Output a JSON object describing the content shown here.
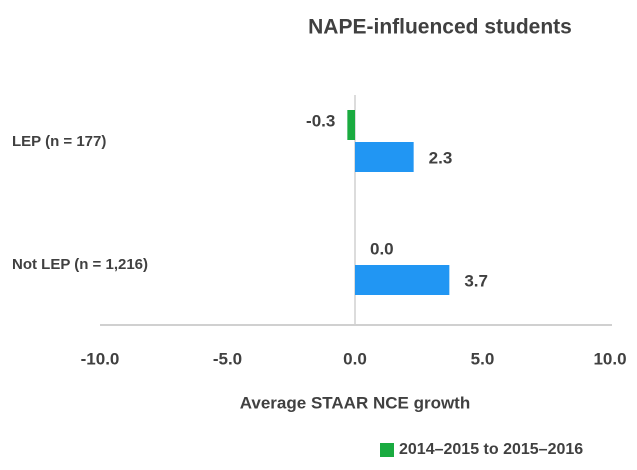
{
  "chart_data": {
    "type": "hbar",
    "title": "NAPE-influenced students",
    "xlabel": "Average STAAR NCE growth",
    "categories": [
      "LEP (n = 177)",
      "Not LEP (n = 1,216)"
    ],
    "series": [
      {
        "name": "2014–2015 to 2015–2016",
        "color": "#1aab40",
        "values": [
          -0.3,
          0.0
        ],
        "value_labels": [
          "-0.3",
          "0.0"
        ]
      },
      {
        "color": "#2196f3",
        "values": [
          2.3,
          3.7
        ],
        "value_labels": [
          "2.3",
          "3.7"
        ]
      }
    ],
    "xlim": [
      -10,
      10
    ],
    "xticks": [
      {
        "value": -10,
        "label": "-10.0"
      },
      {
        "value": -5,
        "label": "-5.0"
      },
      {
        "value": 0,
        "label": "0.0"
      },
      {
        "value": 5,
        "label": "5.0"
      },
      {
        "value": 10,
        "label": "10.0"
      }
    ],
    "legend": "bottom-right"
  }
}
